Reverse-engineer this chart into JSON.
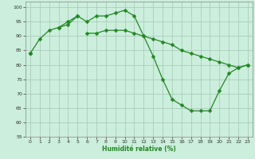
{
  "xlabel": "Humidité relative (%)",
  "bg_color": "#cceedd",
  "grid_color": "#aaccbb",
  "line_color": "#228822",
  "marker": "D",
  "markersize": 2.5,
  "linewidth": 0.9,
  "xlim": [
    -0.5,
    23.5
  ],
  "ylim": [
    55,
    102
  ],
  "yticks": [
    55,
    60,
    65,
    70,
    75,
    80,
    85,
    90,
    95,
    100
  ],
  "xticks": [
    0,
    1,
    2,
    3,
    4,
    5,
    6,
    7,
    8,
    9,
    10,
    11,
    12,
    13,
    14,
    15,
    16,
    17,
    18,
    19,
    20,
    21,
    22,
    23
  ],
  "lines": [
    [
      84,
      89,
      92,
      93,
      94,
      97,
      95,
      97,
      97,
      98,
      99,
      97,
      90,
      83,
      75,
      68,
      66,
      64,
      64,
      64,
      71,
      77,
      79,
      80
    ],
    [
      84,
      null,
      null,
      93,
      95,
      97,
      null,
      null,
      null,
      null,
      null,
      null,
      null,
      null,
      null,
      null,
      null,
      null,
      null,
      null,
      null,
      null,
      null,
      null
    ],
    [
      84,
      null,
      null,
      null,
      null,
      null,
      91,
      91,
      92,
      92,
      92,
      91,
      90,
      89,
      88,
      87,
      85,
      84,
      83,
      82,
      81,
      80,
      79,
      80
    ]
  ]
}
